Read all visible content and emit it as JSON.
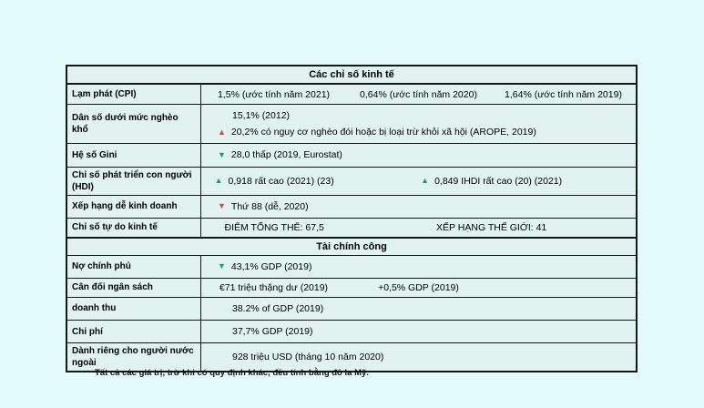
{
  "page": {
    "background": "#e3fafd"
  },
  "colors": {
    "cell_background": "#e0f3f0",
    "border": "#161616",
    "trend_green": "#14a457",
    "trend_red": "#e8413c"
  },
  "icons": {
    "up": "▲",
    "down": "▼"
  },
  "footer": {
    "note": "Tất cả các giá trị, trừ khi có quy định khác, đều tính bằng đô la Mỹ."
  },
  "table": {
    "rows": [
      {
        "type": "section",
        "text": "Các chỉ số kinh tế"
      },
      {
        "type": "row",
        "label": "Lạm phát (CPI)",
        "mode": "cells",
        "cells": [
          {
            "text": "1,5% (ước tính năm 2021)",
            "span": 1
          },
          {
            "text": "0,64% (ước tính năm 2020)",
            "span": 1
          },
          {
            "text": "1,64% (ước tính năm 2019)",
            "span": 1
          }
        ]
      },
      {
        "type": "row",
        "label": "Dân số dưới mức nghèo khổ",
        "mode": "lines",
        "lines": [
          {
            "text": "15,1% (2012)",
            "indent": "plain"
          },
          {
            "trend": "up",
            "color": "red",
            "text": "20,2% có nguy cơ nghèo đói hoặc bị loại trừ khỏi xã hội (AROPE, 2019)",
            "indent": "tri"
          }
        ]
      },
      {
        "type": "row",
        "label": "Hệ số Gini",
        "mode": "lines",
        "lines": [
          {
            "trend": "down",
            "color": "green",
            "text": "28,0 thấp (2019, Eurostat)",
            "indent": "tri"
          }
        ]
      },
      {
        "type": "row",
        "label": "Chỉ số phát triển con người (HDI)",
        "mode": "cells",
        "cells": [
          {
            "trend": "up",
            "color": "green",
            "text": "0,918 rất cao (2021) (23)",
            "span": 1
          },
          {
            "trend": "up",
            "color": "green",
            "text": "0,849 IHDI rất cao (20) (2021)",
            "span": 2
          }
        ]
      },
      {
        "type": "row",
        "label": "Xếp hạng dễ kinh doanh",
        "mode": "lines",
        "lines": [
          {
            "trend": "down",
            "color": "red",
            "text": "Thứ 88 (dễ, 2020)",
            "indent": "tri"
          }
        ]
      },
      {
        "type": "row",
        "label": "Chỉ số tự do kinh tế",
        "mode": "cells",
        "cells": [
          {
            "text": "ĐIỂM TỔNG THỂ: 67,5",
            "span": 1
          },
          {
            "text": "XẾP HẠNG THẾ GIỚI: 41",
            "span": 2
          }
        ]
      },
      {
        "type": "section",
        "text": "Tài chính công"
      },
      {
        "type": "row",
        "label": "Nợ chính phủ",
        "mode": "lines",
        "lines": [
          {
            "trend": "down",
            "color": "green",
            "text": "43,1% GDP (2019)",
            "indent": "tri"
          }
        ]
      },
      {
        "type": "row",
        "label": "Cân đối ngân sách",
        "mode": "cells",
        "cells": [
          {
            "text": "€71 triệu thặng dư (2019)",
            "span": 1
          },
          {
            "text": "+0,5% GDP (2019)",
            "span": 1
          },
          {
            "text": "",
            "span": 1
          }
        ]
      },
      {
        "type": "row",
        "label": "doanh thu",
        "mode": "lines",
        "lines": [
          {
            "text": "38.2% of GDP (2019)",
            "indent": "plain"
          }
        ]
      },
      {
        "type": "row",
        "label": "Chi phí",
        "mode": "lines",
        "lines": [
          {
            "text": "37,7% GDP (2019)",
            "indent": "plain"
          }
        ]
      },
      {
        "type": "row",
        "label": "Dành riêng cho người nước ngoài",
        "mode": "lines",
        "lines": [
          {
            "text": "928 triệu USD (tháng 10 năm 2020)",
            "indent": "plain"
          }
        ]
      }
    ]
  }
}
